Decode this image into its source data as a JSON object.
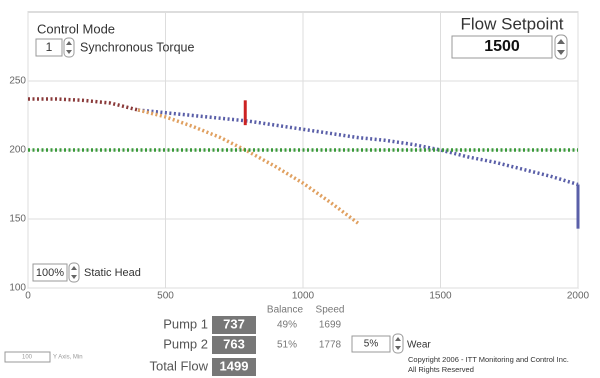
{
  "control_mode": {
    "label": "Control Mode",
    "value": "1",
    "mode": "Synchronous Torque"
  },
  "flow_setpoint": {
    "label": "Flow Setpoint",
    "value": "1500"
  },
  "static_head": {
    "value": "100%",
    "label": "Static Head"
  },
  "chart_data": {
    "type": "line",
    "xlim": [
      0,
      2000
    ],
    "xticks": [
      0,
      500,
      1000,
      1500,
      2000
    ],
    "ylim": [
      100,
      300
    ],
    "yticks": [
      100,
      150,
      200,
      250
    ],
    "grid": true,
    "series": [
      {
        "color": "#5a5fa8",
        "x": [
          400,
          500,
          600,
          700,
          800,
          900,
          1000,
          1100,
          1200,
          1300,
          1400,
          1500,
          1600,
          1700,
          1800,
          1900,
          2000
        ],
        "values": [
          229,
          227,
          225,
          223,
          221,
          218,
          215,
          212,
          209,
          207,
          204,
          200,
          195,
          191,
          186,
          181,
          175
        ]
      },
      {
        "color": "#e0a060",
        "x": [
          400,
          500,
          600,
          700,
          800,
          900,
          1000,
          1100,
          1200
        ],
        "values": [
          229,
          224,
          217,
          209,
          199,
          188,
          176,
          162,
          147
        ]
      },
      {
        "color": "#8a3a3a",
        "x": [
          0,
          100,
          200,
          300,
          400
        ],
        "values": [
          237,
          237,
          236,
          234,
          229
        ]
      },
      {
        "color": "#3a9a3a",
        "x": [
          0,
          2000
        ],
        "values": [
          200,
          200
        ]
      }
    ],
    "markers": [
      {
        "color": "#cc2222",
        "x": 790,
        "values": [
          218,
          236
        ]
      },
      {
        "color": "#5a5fa8",
        "x": 2000,
        "values": [
          143,
          175
        ]
      }
    ]
  },
  "pump_table": {
    "headers": [
      "Balance",
      "Speed"
    ],
    "rows": [
      [
        "Pump 1",
        "737",
        "49%",
        "1699"
      ],
      [
        "Pump 2",
        "763",
        "51%",
        "1778"
      ]
    ],
    "total": [
      "Total Flow",
      "1499"
    ]
  },
  "wear": {
    "value": "5%",
    "label": "Wear"
  },
  "y_axis_min": {
    "value": "100",
    "label": "Y Axis, Min"
  },
  "copyright": [
    "Copyright 2006 - ITT Monitoring and Control Inc.",
    "All Rights Reserved"
  ]
}
